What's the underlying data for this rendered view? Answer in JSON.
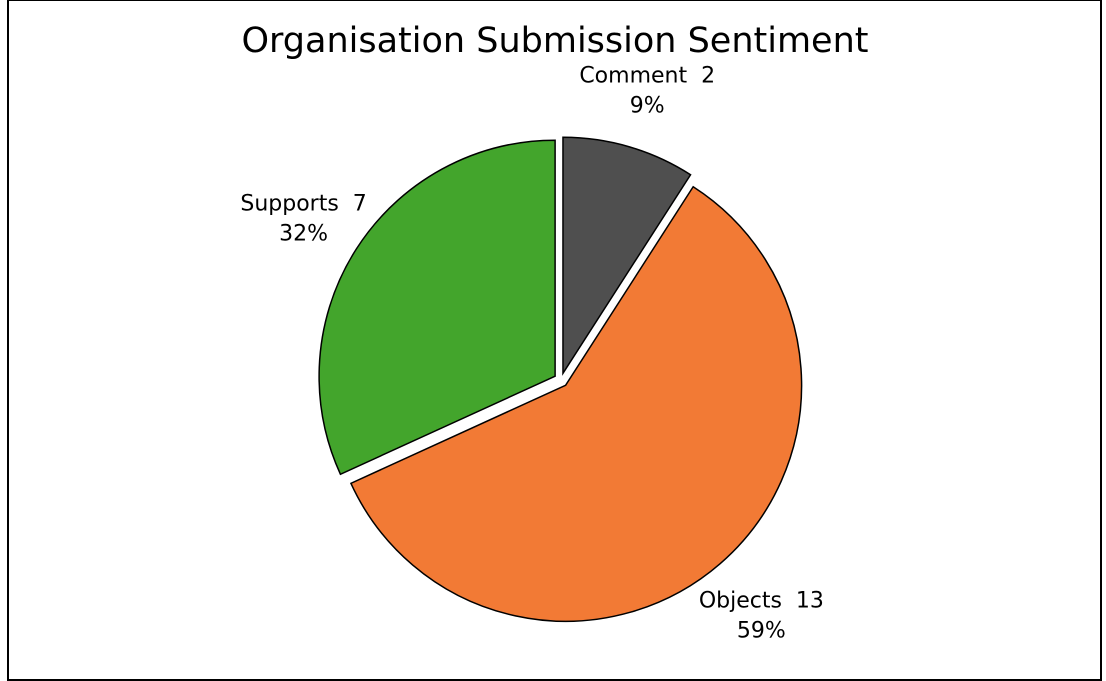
{
  "chart_data": {
    "type": "pie",
    "title": "Organisation Submission Sentiment",
    "categories": [
      "Comment",
      "Objects",
      "Supports"
    ],
    "values": [
      2,
      13,
      7
    ],
    "percent_labels": [
      "9%",
      "59%",
      "32%"
    ],
    "colors": [
      "#4f4f4f",
      "#f27a35",
      "#43a52c"
    ],
    "start_angle_deg": 0,
    "direction": "clockwise",
    "exploded": true,
    "legend": "none"
  }
}
